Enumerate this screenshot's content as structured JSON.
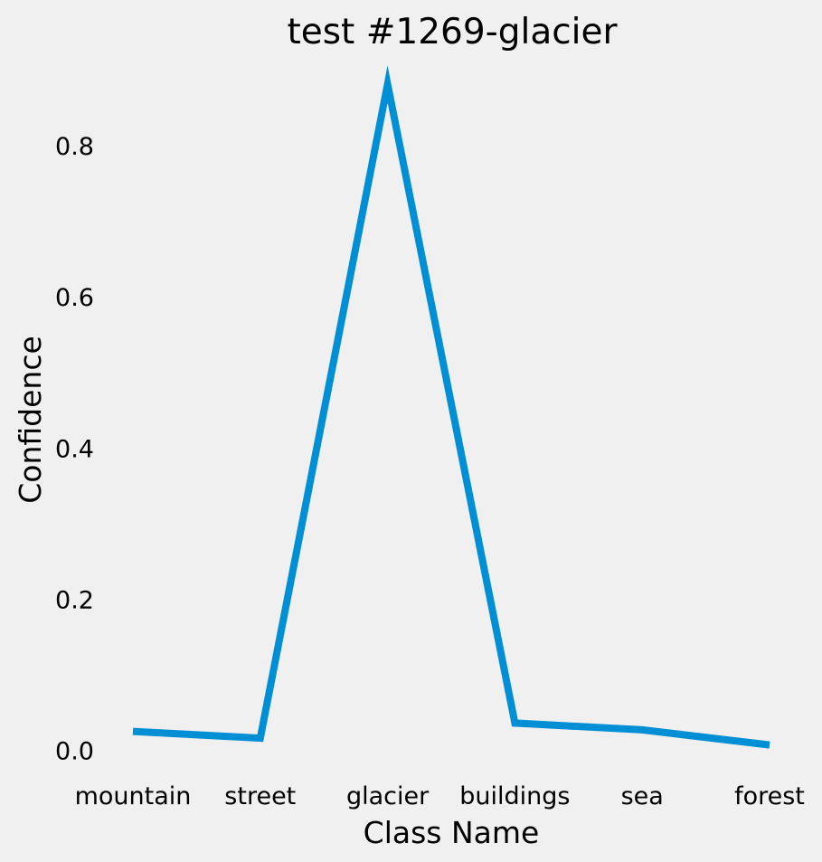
{
  "chart_data": {
    "type": "line",
    "title": "test #1269-glacier",
    "xlabel": "Class Name",
    "ylabel": "Confidence",
    "categories": [
      "mountain",
      "street",
      "glacier",
      "buildings",
      "sea",
      "forest"
    ],
    "series": [
      {
        "values": [
          0.027,
          0.018,
          0.883,
          0.038,
          0.029,
          0.009
        ],
        "color": "#008fd5"
      }
    ],
    "yticks": [
      "0.0",
      "0.2",
      "0.4",
      "0.6",
      "0.8"
    ],
    "ylim": [
      -0.013,
      0.925
    ],
    "grid": false,
    "legend": "none"
  }
}
